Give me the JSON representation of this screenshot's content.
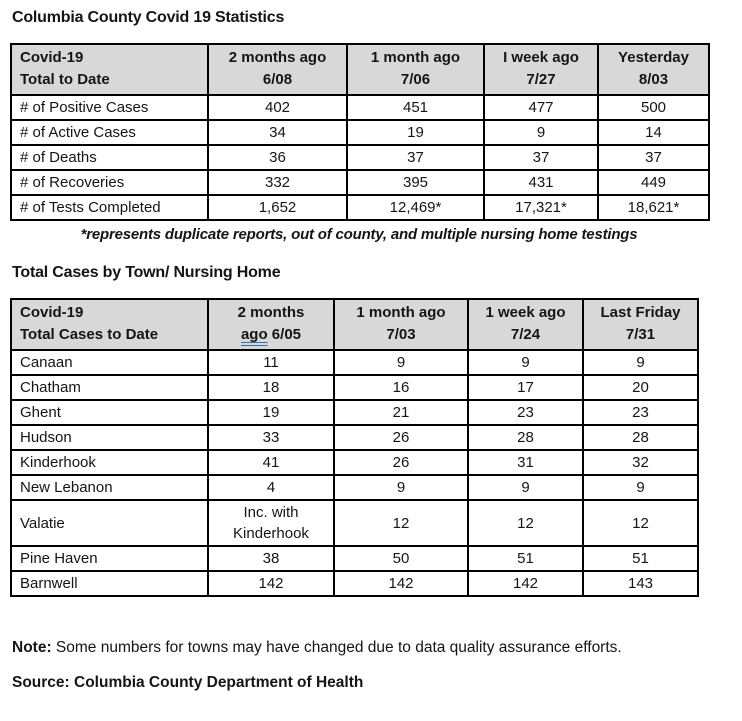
{
  "page": {
    "title": "Columbia County Covid 19 Statistics",
    "section2_title": "Total Cases by Town/ Nursing Home",
    "footnote": "*represents duplicate reports, out of county, and multiple nursing home testings",
    "note_label": "Note:",
    "note_text": "Some numbers for towns may have changed due to data quality assurance efforts.",
    "source": "Source: Columbia County Department of Health"
  },
  "colors": {
    "header_bg": "#d8d8d8",
    "border": "#000000",
    "grammar_underline": "#2e74b5"
  },
  "table1": {
    "columns": [
      {
        "line1": "Covid-19",
        "line2": "Total to Date"
      },
      {
        "line1": "2 months ago",
        "line2": "6/08"
      },
      {
        "line1": "1 month ago",
        "line2": "7/06"
      },
      {
        "line1": "I week ago",
        "line2": "7/27"
      },
      {
        "line1": "Yesterday",
        "line2": "8/03"
      }
    ],
    "rows": [
      {
        "label": "# of Positive Cases",
        "values": [
          "402",
          "451",
          "477",
          "500"
        ]
      },
      {
        "label": "# of Active Cases",
        "values": [
          "34",
          "19",
          "9",
          "14"
        ]
      },
      {
        "label": "# of Deaths",
        "values": [
          "36",
          "37",
          "37",
          "37"
        ]
      },
      {
        "label": "# of Recoveries",
        "values": [
          "332",
          "395",
          "431",
          "449"
        ]
      },
      {
        "label": "# of Tests Completed",
        "values": [
          "1,652",
          "12,469*",
          "17,321*",
          "18,621*"
        ]
      }
    ]
  },
  "table2": {
    "columns": [
      {
        "line1": "Covid-19",
        "line2": "Total Cases to Date"
      },
      {
        "line1": "2 months",
        "line2_underlined_word": "ago",
        "line2_rest": " 6/05"
      },
      {
        "line1": "1 month ago",
        "line2": "7/03"
      },
      {
        "line1": "1 week ago",
        "line2": "7/24"
      },
      {
        "line1": "Last Friday",
        "line2": "7/31"
      }
    ],
    "rows": [
      {
        "label": "Canaan",
        "values": [
          "11",
          "9",
          "9",
          "9"
        ]
      },
      {
        "label": "Chatham",
        "values": [
          "18",
          "16",
          "17",
          "20"
        ]
      },
      {
        "label": "Ghent",
        "values": [
          "19",
          "21",
          "23",
          "23"
        ]
      },
      {
        "label": "Hudson",
        "values": [
          "33",
          "26",
          "28",
          "28"
        ]
      },
      {
        "label": "Kinderhook",
        "values": [
          "41",
          "26",
          "31",
          "32"
        ]
      },
      {
        "label": "New Lebanon",
        "values": [
          "4",
          "9",
          "9",
          "9"
        ]
      },
      {
        "label": "Valatie",
        "values": [
          [
            "Inc. with",
            "Kinderhook"
          ],
          "12",
          "12",
          "12"
        ]
      },
      {
        "label": "Pine Haven",
        "values": [
          "38",
          "50",
          "51",
          "51"
        ]
      },
      {
        "label": "Barnwell",
        "values": [
          "142",
          "142",
          "142",
          "143"
        ]
      }
    ]
  }
}
